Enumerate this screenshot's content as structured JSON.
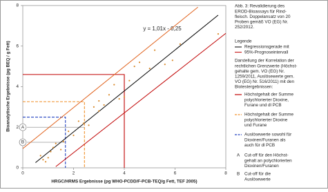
{
  "chart_data": {
    "type": "scatter",
    "x_label": "HRGC/HRMS Ergebnisse (pg WHO-PCDD/F-PCB-TEQ/g Fett, TEF 2005)",
    "y_label": "Bioanalytische Ergebnisse (pg BEQ / g Fett)",
    "annotation": "y = 1,01x - 0,25",
    "xlim": [
      0,
      8
    ],
    "ylim": [
      0,
      8
    ],
    "xticks": [
      0,
      2,
      4,
      6,
      8
    ],
    "yticks": [
      0,
      2,
      4,
      6,
      8
    ],
    "lines": [
      {
        "name": "Regressionsgerade",
        "color": "#000000",
        "x": [
          0.5,
          7.7
        ],
        "values": [
          0.255,
          7.527
        ]
      },
      {
        "name": "obere Prognosegrenze",
        "color": "#e0601a",
        "x": [
          0,
          6.9
        ],
        "values": [
          0.95,
          7.92
        ]
      },
      {
        "name": "untere Prognosegrenze",
        "color": "#c00000",
        "x": [
          1.3,
          8
        ],
        "values": [
          0.06,
          6.63
        ]
      }
    ],
    "thresholds": [
      {
        "color": "#c00000",
        "dashed": false,
        "x": 4,
        "y": 4.6
      },
      {
        "color": "#f0902a",
        "dashed": true,
        "x": 2.43,
        "y": 3.26
      },
      {
        "color": "#1f3fbf",
        "dashed": true,
        "x": 1.68,
        "y": 2.5
      }
    ],
    "cutoffs": [
      {
        "label": "A",
        "y": 2.0,
        "x_end": 2.43
      },
      {
        "label": "B",
        "y": 1.26,
        "x_end": 1.68
      }
    ],
    "points": {
      "color": "#d98a2b",
      "x": [
        0.7,
        0.8,
        0.9,
        1.0,
        1.1,
        1.2,
        1.3,
        1.5,
        1.6,
        1.8,
        2.0,
        2.2,
        2.4,
        2.6,
        2.8,
        3.0,
        3.0,
        3.2,
        3.4,
        3.6,
        3.8,
        4.0,
        4.2,
        4.4,
        4.6,
        5.0,
        5.2,
        5.6,
        5.9,
        6.2,
        7.7
      ],
      "values": [
        0.6,
        0.4,
        0.3,
        0.5,
        0.8,
        1.0,
        1.2,
        0.9,
        1.3,
        1.8,
        1.6,
        2.3,
        2.2,
        2.1,
        3.0,
        2.8,
        3.3,
        3.1,
        3.6,
        4.1,
        3.4,
        3.5,
        4.3,
        5.0,
        5.2,
        4.9,
        5.8,
        5.1,
        5.3,
        6.1,
        6.6
      ]
    }
  },
  "caption": {
    "lines": [
      "Abb. 3: Revalidierung des",
      "EROD-Bioassays für Rind-",
      "fleisch. Doppelansatz von 20",
      "Proben gemäß VO (EG) Nr.",
      "252/2012."
    ]
  },
  "legend": {
    "title": "Legende",
    "items": [
      "Regressionsgerade mit",
      "95%-Prognoseintervall"
    ]
  },
  "description": {
    "lines": [
      "Darstellung der Korrelation der",
      "rechtlichen Grenzwerte (Höchst-",
      "gehalte  gem. VO (EG) Nr.",
      "1259/2011, Auslösewerte gem.",
      "VO (EG) Nr. 516/2011) mit den",
      "Biotestergebnissen:"
    ]
  },
  "keys": [
    {
      "lines": [
        "Höchstgehalt der Summe",
        "polychlorierter Dioxine,",
        "Furane und dl PCB"
      ]
    },
    {
      "lines": [
        "Höchstgehalt der Summe",
        "polychlorierter Dioxine",
        "und Furane"
      ]
    },
    {
      "lines": [
        "Auslösewerte sowohl für",
        "Dioxinen/Furanen als",
        "auch für dl PCB"
      ]
    },
    {
      "lines": [
        "Cut-off für den Höchst-",
        "gehalt an polychlorierten",
        "Dioxinen/Furanen"
      ]
    },
    {
      "lines": [
        "Cut-off für die",
        "Auslösewerte"
      ]
    }
  ]
}
